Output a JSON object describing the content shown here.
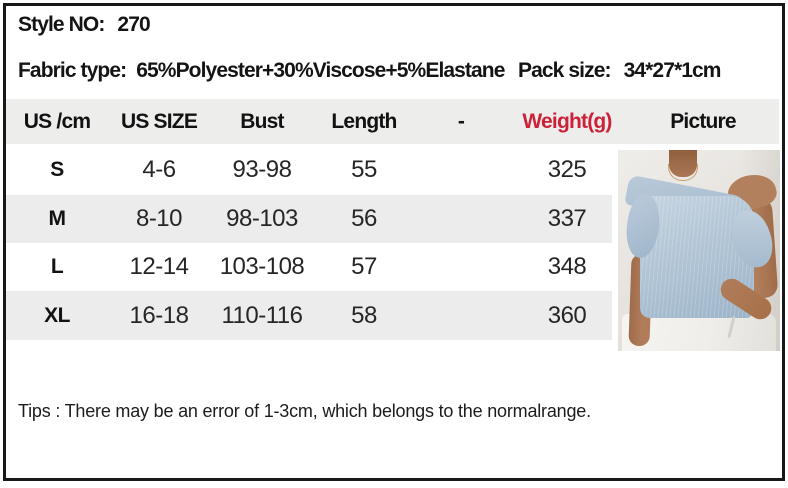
{
  "product": {
    "style_label": "Style NO:",
    "style_value": "270",
    "fabric_label": "Fabric type:",
    "fabric_value": "65%Polyester+30%Viscose+5%Elastane",
    "pack_label": "Pack size:",
    "pack_value": "34*27*1cm"
  },
  "size_table": {
    "headers": [
      "US /cm",
      "US SIZE",
      "Bust",
      "Length",
      "-",
      "Weight(g)",
      "Picture"
    ],
    "rows": [
      {
        "size": "S",
        "us_size": "4-6",
        "bust": "93-98",
        "length": "55",
        "dash": "",
        "weight": "325"
      },
      {
        "size": "M",
        "us_size": "8-10",
        "bust": "98-103",
        "length": "56",
        "dash": "",
        "weight": "337"
      },
      {
        "size": "L",
        "us_size": "12-14",
        "bust": "103-108",
        "length": "57",
        "dash": "",
        "weight": "348"
      },
      {
        "size": "XL",
        "us_size": "16-18",
        "bust": "110-116",
        "length": "58",
        "dash": "",
        "weight": "360"
      }
    ]
  },
  "tips": "Tips : There may be an error of 1-3cm, which belongs to the normalrange.",
  "picture": {
    "description": "Model wearing a light blue loose knit short-sleeve top, one shoulder bare, white pants, hand in pocket"
  },
  "colors": {
    "accent_red": "#cd2139",
    "header_band": "#ededec",
    "stripe_band": "#ececec",
    "border_black": "#181818",
    "knit_blue": "#aec3d6"
  }
}
